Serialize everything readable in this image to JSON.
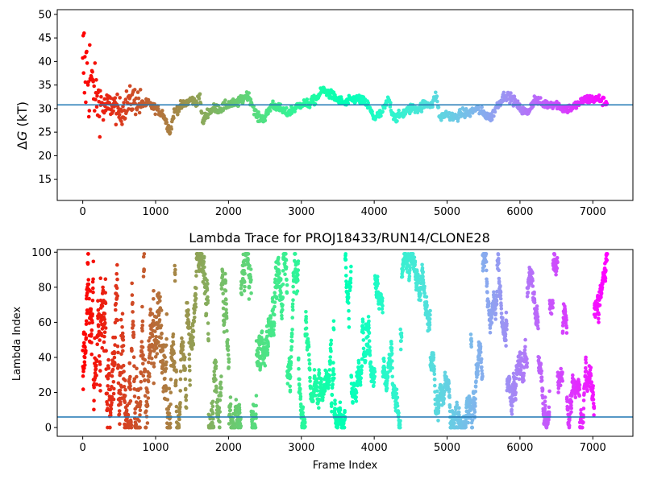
{
  "chart_data": [
    {
      "type": "scatter",
      "title": "",
      "xlabel": "",
      "ylabel": "ΔG (kT)",
      "ylabel_parts": {
        "symbol": "Δ",
        "var": "G",
        "unit": " (kT)"
      },
      "xlim": [
        -350,
        7550
      ],
      "ylim": [
        10.5,
        51
      ],
      "xticks": [
        0,
        1000,
        2000,
        3000,
        4000,
        5000,
        6000,
        7000
      ],
      "yticks": [
        15,
        20,
        25,
        30,
        35,
        40,
        45,
        50
      ],
      "hline": 30.8,
      "hline_color": "#1f77b4",
      "colormap": "rainbow (red at frame 0 → purple at frame ~7200)",
      "frames": 7200,
      "series_profile": {
        "x": [
          0,
          50,
          100,
          150,
          200,
          300,
          400,
          500,
          600,
          700,
          800,
          900,
          1000,
          1100,
          1150,
          1200,
          1250,
          1300,
          1400,
          1500,
          1550,
          1600,
          1650,
          1700,
          1800,
          1900,
          2000,
          2100,
          2200,
          2250,
          2300,
          2400,
          2500,
          2600,
          2700,
          2800,
          2900,
          3000,
          3100,
          3200,
          3250,
          3300,
          3400,
          3500,
          3600,
          3700,
          3800,
          3900,
          4000,
          4100,
          4200,
          4250,
          4300,
          4400,
          4500,
          4600,
          4700,
          4800,
          4850,
          4900,
          5000,
          5100,
          5200,
          5300,
          5400,
          5500,
          5600,
          5700,
          5800,
          5900,
          6000,
          6100,
          6200,
          6300,
          6400,
          6500,
          6600,
          6700,
          6800,
          6900,
          7000,
          7100,
          7200
        ],
        "y": [
          35,
          38,
          37,
          34,
          32,
          30,
          31,
          29,
          31,
          32,
          31,
          31,
          30,
          29,
          27,
          25,
          29,
          30,
          31,
          32,
          31,
          33,
          27,
          29,
          30,
          30,
          31,
          31,
          32,
          33,
          32,
          28,
          28,
          31,
          30,
          29,
          30,
          31,
          31,
          32,
          33,
          34,
          33,
          32,
          31,
          32,
          32,
          31,
          28,
          29,
          32,
          29,
          28,
          29,
          30,
          30,
          31,
          31,
          33,
          28,
          29,
          28,
          29,
          29,
          30,
          29,
          28,
          31,
          33,
          32,
          30,
          29,
          32,
          31,
          31,
          31,
          30,
          30,
          31,
          32,
          32,
          32,
          31
        ]
      }
    },
    {
      "type": "scatter",
      "title": "Lambda Trace for PROJ18433/RUN14/CLONE28",
      "xlabel": "Frame Index",
      "ylabel": "Lambda Index",
      "xlim": [
        -350,
        7550
      ],
      "ylim": [
        -5,
        101.5
      ],
      "xticks": [
        0,
        1000,
        2000,
        3000,
        4000,
        5000,
        6000,
        7000
      ],
      "yticks": [
        0,
        20,
        40,
        60,
        80,
        100
      ],
      "hline": 6,
      "hline_color": "#1f77b4",
      "colormap": "rainbow (red at frame 0 → purple at frame ~7200)",
      "frames": 7200,
      "lambda_range": [
        0,
        99
      ]
    }
  ]
}
